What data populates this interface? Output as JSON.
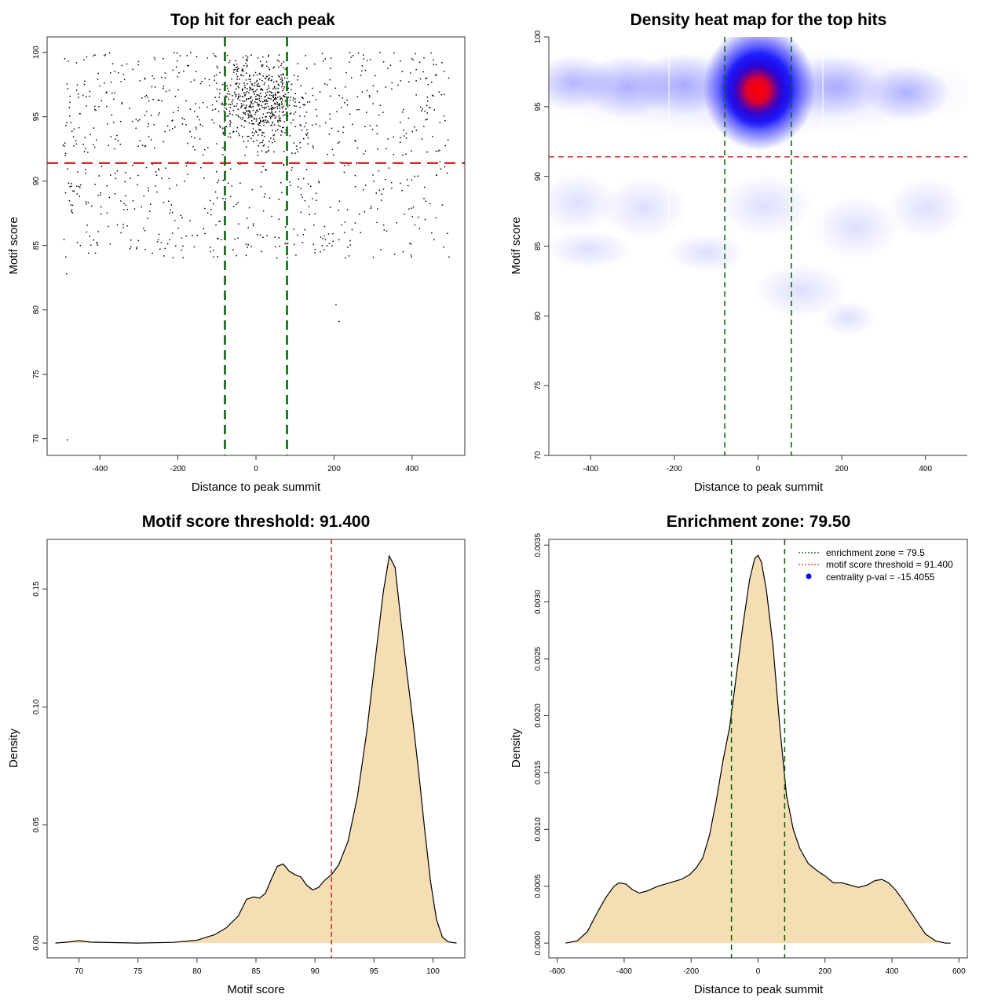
{
  "colors": {
    "threshold_line": "#d62728",
    "zone_line": "#006400",
    "density_fill": "#f5deb3",
    "heat_low": "#ffffff",
    "heat_mid": "#0000ff",
    "heat_high": "#ff0000",
    "legend_dot": "#0000ff"
  },
  "chart_data": [
    {
      "id": "scatter",
      "type": "scatter",
      "title": "Top hit for each peak",
      "xlabel": "Distance to peak summit",
      "ylabel": "Motif score",
      "xlim": [
        -535,
        535
      ],
      "ylim": [
        68.7,
        101.2
      ],
      "xticks": [
        -400,
        -200,
        0,
        200,
        400
      ],
      "yticks": [
        70,
        75,
        80,
        85,
        90,
        95,
        100
      ],
      "threshold": 91.4,
      "zone": [
        -79.5,
        79.5
      ],
      "grid": false,
      "point_summary": {
        "n_points": 1400,
        "x_range": [
          -495,
          495
        ],
        "y_range": [
          69.9,
          100
        ],
        "cluster_center": [
          10,
          96.2
        ],
        "note_points": [
          [
            -483,
            69.9
          ],
          [
            213,
            79.1
          ],
          [
            205,
            80.4
          ],
          [
            -485,
            82.8
          ]
        ]
      }
    },
    {
      "id": "heatmap",
      "type": "heatmap",
      "title": "Density heat map for the top hits",
      "xlabel": "Distance to peak summit",
      "ylabel": "Motif score",
      "xlim": [
        -500,
        500
      ],
      "ylim": [
        70,
        100
      ],
      "xticks": [
        -400,
        -200,
        0,
        200,
        400
      ],
      "yticks": [
        70,
        75,
        80,
        85,
        90,
        95,
        100
      ],
      "threshold": 91.4,
      "zone": [
        -79.5,
        79.5
      ],
      "peak": [
        5,
        96.2
      ],
      "colorscale": [
        "white",
        "blue",
        "red"
      ]
    },
    {
      "id": "score-density",
      "type": "area",
      "title": "Motif score threshold: 91.400",
      "xlabel": "Motif score",
      "ylabel": "Density",
      "xlim": [
        67.3,
        102.7
      ],
      "ylim": [
        -0.0063,
        0.171
      ],
      "xticks": [
        70,
        75,
        80,
        85,
        90,
        95,
        100
      ],
      "yticks": [
        0.0,
        0.05,
        0.1,
        0.15
      ],
      "ytick_labels": [
        "0.00",
        "0.05",
        "0.10",
        "0.15"
      ],
      "threshold": 91.4,
      "x": [
        68.0,
        69.0,
        70.0,
        71.0,
        75.0,
        78.0,
        80.0,
        81.5,
        82.5,
        83.5,
        84.2,
        84.8,
        85.3,
        85.8,
        86.3,
        86.8,
        87.3,
        87.8,
        88.3,
        88.8,
        89.3,
        89.8,
        90.3,
        90.8,
        91.4,
        92.0,
        92.8,
        93.6,
        94.4,
        95.2,
        95.8,
        96.3,
        96.8,
        97.3,
        97.8,
        98.3,
        98.8,
        99.3,
        99.8,
        100.3,
        100.8,
        101.3,
        102.0
      ],
      "y": [
        0.0,
        0.0004,
        0.001,
        0.0004,
        0.0,
        0.0003,
        0.0012,
        0.0035,
        0.0065,
        0.0115,
        0.0185,
        0.0195,
        0.019,
        0.021,
        0.027,
        0.0325,
        0.0335,
        0.0305,
        0.029,
        0.028,
        0.0245,
        0.0225,
        0.0235,
        0.0265,
        0.029,
        0.033,
        0.043,
        0.062,
        0.09,
        0.124,
        0.149,
        0.164,
        0.159,
        0.136,
        0.114,
        0.094,
        0.072,
        0.048,
        0.026,
        0.01,
        0.0025,
        0.0005,
        0.0
      ]
    },
    {
      "id": "distance-density",
      "type": "area",
      "title": "Enrichment zone: 79.50",
      "xlabel": "Distance to peak summit",
      "ylabel": "Density",
      "xlim": [
        -625,
        625
      ],
      "ylim": [
        -0.00013,
        0.00355
      ],
      "xticks": [
        -600,
        -400,
        -200,
        0,
        200,
        400,
        600
      ],
      "yticks": [
        0.0,
        0.0005,
        0.001,
        0.0015,
        0.002,
        0.0025,
        0.003,
        0.0035
      ],
      "ytick_labels": [
        "0.0000",
        "0.0005",
        "0.0010",
        "0.0015",
        "0.0020",
        "0.0025",
        "0.0030",
        "0.0035"
      ],
      "zone": [
        -79.5,
        79.5
      ],
      "x": [
        -575,
        -540,
        -510,
        -480,
        -455,
        -430,
        -415,
        -395,
        -375,
        -355,
        -330,
        -300,
        -265,
        -230,
        -205,
        -185,
        -165,
        -145,
        -125,
        -105,
        -85,
        -65,
        -45,
        -25,
        -10,
        0,
        10,
        25,
        45,
        65,
        85,
        105,
        125,
        150,
        175,
        200,
        225,
        250,
        275,
        300,
        325,
        350,
        370,
        390,
        410,
        430,
        450,
        475,
        500,
        530,
        560,
        575
      ],
      "y": [
        0.0,
        2e-05,
        0.0001,
        0.00027,
        0.0004,
        0.0005,
        0.00053,
        0.00052,
        0.00047,
        0.00044,
        0.00046,
        0.0005,
        0.00053,
        0.00056,
        0.0006,
        0.00066,
        0.00075,
        0.00095,
        0.00125,
        0.0016,
        0.0019,
        0.00235,
        0.0028,
        0.0032,
        0.00338,
        0.00341,
        0.00335,
        0.0031,
        0.0026,
        0.0019,
        0.0013,
        0.001,
        0.00083,
        0.0007,
        0.00064,
        0.00059,
        0.00053,
        0.00053,
        0.00051,
        0.00049,
        0.00051,
        0.00055,
        0.00056,
        0.00053,
        0.00047,
        0.00039,
        0.0003,
        0.00019,
        8e-05,
        2e-05,
        0.0,
        0.0
      ],
      "legend": {
        "position": "top-right",
        "items": [
          {
            "label": "enrichment zone = 79.5",
            "style": "dotted",
            "color": "#006400"
          },
          {
            "label": "motif score threshold = 91.400",
            "style": "dotted",
            "color": "#d62728"
          },
          {
            "label": "centrality p-val = -15.4055",
            "style": "dot",
            "color": "#0000ff"
          }
        ]
      }
    }
  ]
}
